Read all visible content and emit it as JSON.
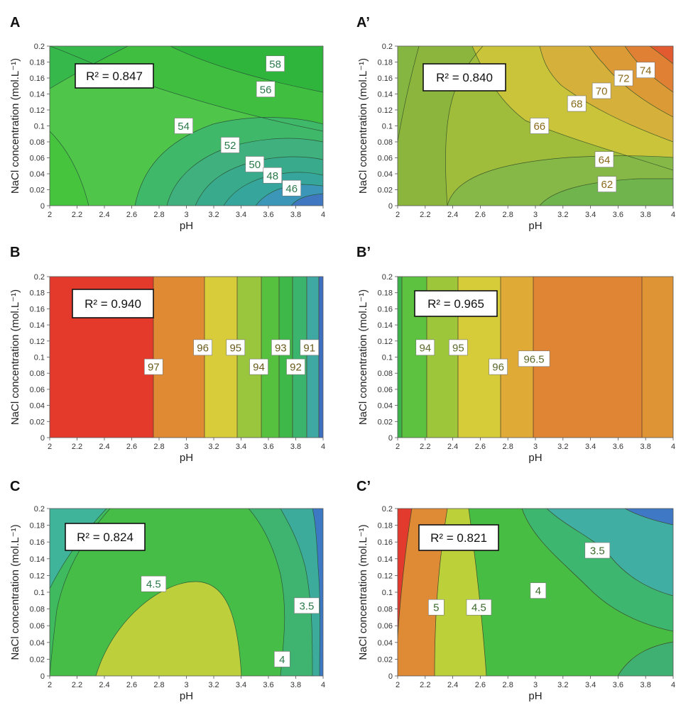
{
  "chart_data": [
    {
      "panel_label": "A",
      "type": "contour",
      "xlabel": "pH",
      "ylabel": "NaCl concentration (mol.L⁻¹)",
      "x_ticks": [
        "2",
        "2.2",
        "2.4",
        "2.6",
        "2.8",
        "3",
        "3.2",
        "3.4",
        "3.6",
        "3.8",
        "4"
      ],
      "y_ticks": [
        "0",
        "0.02",
        "0.04",
        "0.06",
        "0.08",
        "0.1",
        "0.12",
        "0.14",
        "0.16",
        "0.18",
        "0.2"
      ],
      "xlim": [
        2,
        4
      ],
      "ylim": [
        0,
        0.2
      ],
      "r2_label": "R² = 0.847",
      "contour_labels": [
        {
          "text": "58",
          "x": 3.65,
          "y": 0.178
        },
        {
          "text": "56",
          "x": 3.58,
          "y": 0.146
        },
        {
          "text": "54",
          "x": 2.98,
          "y": 0.1
        },
        {
          "text": "52",
          "x": 3.32,
          "y": 0.076
        },
        {
          "text": "50",
          "x": 3.5,
          "y": 0.052
        },
        {
          "text": "48",
          "x": 3.63,
          "y": 0.038
        },
        {
          "text": "46",
          "x": 3.77,
          "y": 0.022
        }
      ]
    },
    {
      "panel_label": "A’",
      "type": "contour",
      "xlabel": "pH",
      "ylabel": "NaCl concentration (mol.L⁻¹)",
      "x_ticks": [
        "2",
        "2.2",
        "2.4",
        "2.6",
        "2.8",
        "3",
        "3.2",
        "3.4",
        "3.6",
        "3.8",
        "4"
      ],
      "y_ticks": [
        "0",
        "0.02",
        "0.04",
        "0.06",
        "0.08",
        "0.1",
        "0.12",
        "0.14",
        "0.16",
        "0.18",
        "0.2"
      ],
      "xlim": [
        2,
        4
      ],
      "ylim": [
        0,
        0.2
      ],
      "r2_label": "R² = 0.840",
      "contour_labels": [
        {
          "text": "74",
          "x": 3.8,
          "y": 0.17
        },
        {
          "text": "72",
          "x": 3.64,
          "y": 0.16
        },
        {
          "text": "70",
          "x": 3.48,
          "y": 0.144
        },
        {
          "text": "68",
          "x": 3.3,
          "y": 0.128
        },
        {
          "text": "66",
          "x": 3.03,
          "y": 0.1
        },
        {
          "text": "64",
          "x": 3.5,
          "y": 0.058
        },
        {
          "text": "62",
          "x": 3.52,
          "y": 0.027
        }
      ]
    },
    {
      "panel_label": "B",
      "type": "contour",
      "xlabel": "pH",
      "ylabel": "NaCl concentration (mol.L⁻¹)",
      "x_ticks": [
        "2",
        "2.2",
        "2.4",
        "2.6",
        "2.8",
        "3",
        "3.2",
        "3.4",
        "3.6",
        "3.8",
        "4"
      ],
      "y_ticks": [
        "0",
        "0.02",
        "0.04",
        "0.06",
        "0.08",
        "0.1",
        "0.12",
        "0.14",
        "0.16",
        "0.18",
        "0.2"
      ],
      "xlim": [
        2,
        4
      ],
      "ylim": [
        0,
        0.2
      ],
      "r2_label": "R² = 0.940",
      "contour_labels": [
        {
          "text": "97",
          "x": 2.76,
          "y": 0.088
        },
        {
          "text": "96",
          "x": 3.12,
          "y": 0.112
        },
        {
          "text": "95",
          "x": 3.36,
          "y": 0.112
        },
        {
          "text": "94",
          "x": 3.53,
          "y": 0.088
        },
        {
          "text": "93",
          "x": 3.69,
          "y": 0.112
        },
        {
          "text": "92",
          "x": 3.8,
          "y": 0.088
        },
        {
          "text": "91",
          "x": 3.9,
          "y": 0.112
        }
      ]
    },
    {
      "panel_label": "B’",
      "type": "contour",
      "xlabel": "pH",
      "ylabel": "NaCl concentration (mol.L⁻¹)",
      "x_ticks": [
        "2",
        "2.2",
        "2.4",
        "2.6",
        "2.8",
        "3",
        "3.2",
        "3.4",
        "3.6",
        "3.8",
        "4"
      ],
      "y_ticks": [
        "0",
        "0.02",
        "0.04",
        "0.06",
        "0.08",
        "0.1",
        "0.12",
        "0.14",
        "0.16",
        "0.18",
        "0.2"
      ],
      "xlim": [
        2,
        4
      ],
      "ylim": [
        0,
        0.2
      ],
      "r2_label": "R² = 0.965",
      "contour_labels": [
        {
          "text": "94",
          "x": 2.2,
          "y": 0.112
        },
        {
          "text": "95",
          "x": 2.44,
          "y": 0.112
        },
        {
          "text": "96",
          "x": 2.73,
          "y": 0.088
        },
        {
          "text": "96.5",
          "x": 2.99,
          "y": 0.098
        }
      ]
    },
    {
      "panel_label": "C",
      "type": "contour",
      "xlabel": "pH",
      "ylabel": "NaCl concentration (mol.L⁻¹)",
      "x_ticks": [
        "2",
        "2.2",
        "2.4",
        "2.6",
        "2.8",
        "3",
        "3.2",
        "3.4",
        "3.6",
        "3.8",
        "4"
      ],
      "y_ticks": [
        "0",
        "0.02",
        "0.04",
        "0.06",
        "0.08",
        "0.1",
        "0.12",
        "0.14",
        "0.16",
        "0.18",
        "0.2"
      ],
      "xlim": [
        2,
        4
      ],
      "ylim": [
        0,
        0.2
      ],
      "r2_label": "R² = 0.824",
      "contour_labels": [
        {
          "text": "4.5",
          "x": 2.76,
          "y": 0.11
        },
        {
          "text": "3.5",
          "x": 3.88,
          "y": 0.084
        },
        {
          "text": "4",
          "x": 3.7,
          "y": 0.02
        }
      ]
    },
    {
      "panel_label": "C’",
      "type": "contour",
      "xlabel": "pH",
      "ylabel": "NaCl concentration (mol.L⁻¹)",
      "x_ticks": [
        "2",
        "2.2",
        "2.4",
        "2.6",
        "2.8",
        "3",
        "3.2",
        "3.4",
        "3.6",
        "3.8",
        "4"
      ],
      "y_ticks": [
        "0",
        "0.02",
        "0.04",
        "0.06",
        "0.08",
        "0.1",
        "0.12",
        "0.14",
        "0.16",
        "0.18",
        "0.2"
      ],
      "xlim": [
        2,
        4
      ],
      "ylim": [
        0,
        0.2
      ],
      "r2_label": "R² = 0.821",
      "contour_labels": [
        {
          "text": "3.5",
          "x": 3.45,
          "y": 0.15
        },
        {
          "text": "4",
          "x": 3.02,
          "y": 0.102
        },
        {
          "text": "5",
          "x": 2.28,
          "y": 0.082
        },
        {
          "text": "4.5",
          "x": 2.59,
          "y": 0.082
        }
      ]
    }
  ]
}
